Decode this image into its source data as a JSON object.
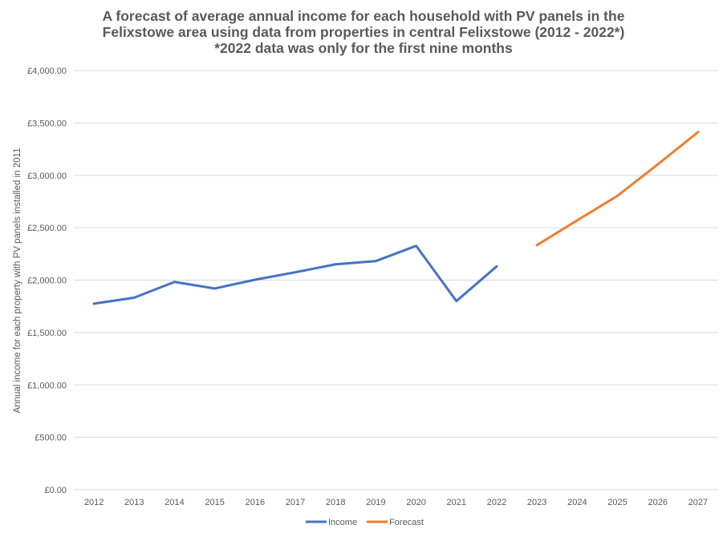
{
  "chart_data": {
    "type": "line",
    "title": [
      "A forecast of average annual income for each household with PV panels in the",
      "Felixstowe area using data from properties in central Felixstowe (2012 - 2022*)",
      "*2022 data was only for the first nine months"
    ],
    "xlabel": "",
    "ylabel": "Annual income for each property with PV panels installed in 2011",
    "categories": [
      "2012",
      "2013",
      "2014",
      "2015",
      "2016",
      "2017",
      "2018",
      "2019",
      "2020",
      "2021",
      "2022",
      "2023",
      "2024",
      "2025",
      "2026",
      "2027"
    ],
    "ylim": [
      0,
      4000
    ],
    "yticks": [
      0,
      500,
      1000,
      1500,
      2000,
      2500,
      3000,
      3500,
      4000
    ],
    "ytick_labels": [
      "£0.00",
      "£500.00",
      "£1,000.00",
      "£1,500.00",
      "£2,000.00",
      "£2,500.00",
      "£3,000.00",
      "£3,500.00",
      "£4,000.00"
    ],
    "grid": true,
    "legend": "bottom",
    "series": [
      {
        "name": "Income",
        "color": "#4472C4",
        "values": [
          1775,
          1833,
          1983,
          1920,
          2004,
          2075,
          2151,
          2182,
          2327,
          1800,
          2131,
          null,
          null,
          null,
          null,
          null
        ]
      },
      {
        "name": "Forecast",
        "color": "#ED7D31",
        "values": [
          null,
          null,
          null,
          null,
          null,
          null,
          null,
          null,
          null,
          null,
          null,
          2334,
          2571,
          2805,
          3105,
          3413
        ]
      }
    ]
  }
}
